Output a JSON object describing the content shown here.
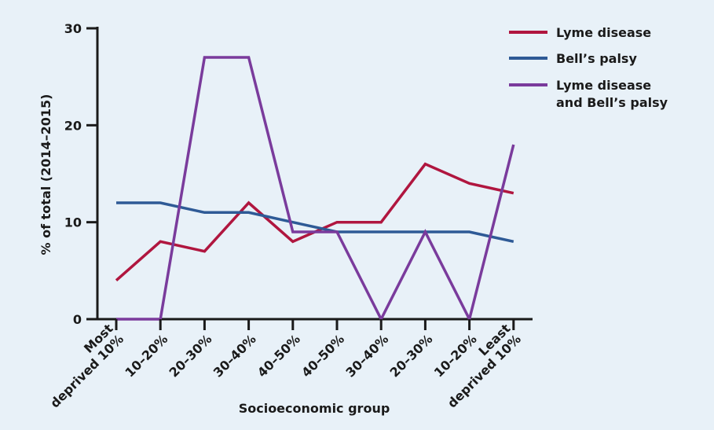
{
  "chart_data": {
    "type": "line",
    "title": "",
    "xlabel": "Socioeconomic group",
    "ylabel": "% of total (2014–2015)",
    "categories": [
      [
        "Most",
        "deprived 10%"
      ],
      [
        "10–20%"
      ],
      [
        "20–30%"
      ],
      [
        "30–40%"
      ],
      [
        "40–50%"
      ],
      [
        "40–50%"
      ],
      [
        "30–40%"
      ],
      [
        "20–30%"
      ],
      [
        "10–20%"
      ],
      [
        "Least",
        "deprived 10%"
      ]
    ],
    "ylim": [
      0,
      30
    ],
    "yticks": [
      0,
      10,
      20,
      30
    ],
    "grid": false,
    "legend_position": "top-right",
    "series": [
      {
        "name": "Lyme disease",
        "legend_lines": [
          "Lyme disease"
        ],
        "color": "#b0163f",
        "values": [
          4,
          8,
          7,
          12,
          8,
          10,
          10,
          16,
          14,
          13
        ]
      },
      {
        "name": "Bell’s palsy",
        "legend_lines": [
          "Bell’s palsy"
        ],
        "color": "#2e5a96",
        "values": [
          12,
          12,
          11,
          11,
          10,
          9,
          9,
          9,
          9,
          8
        ]
      },
      {
        "name": "Lyme disease and Bell’s palsy",
        "legend_lines": [
          "Lyme disease",
          "and Bell’s palsy"
        ],
        "color": "#7a3b9c",
        "values": [
          0,
          0,
          27,
          27,
          9,
          9,
          0,
          9,
          0,
          18
        ]
      }
    ]
  }
}
